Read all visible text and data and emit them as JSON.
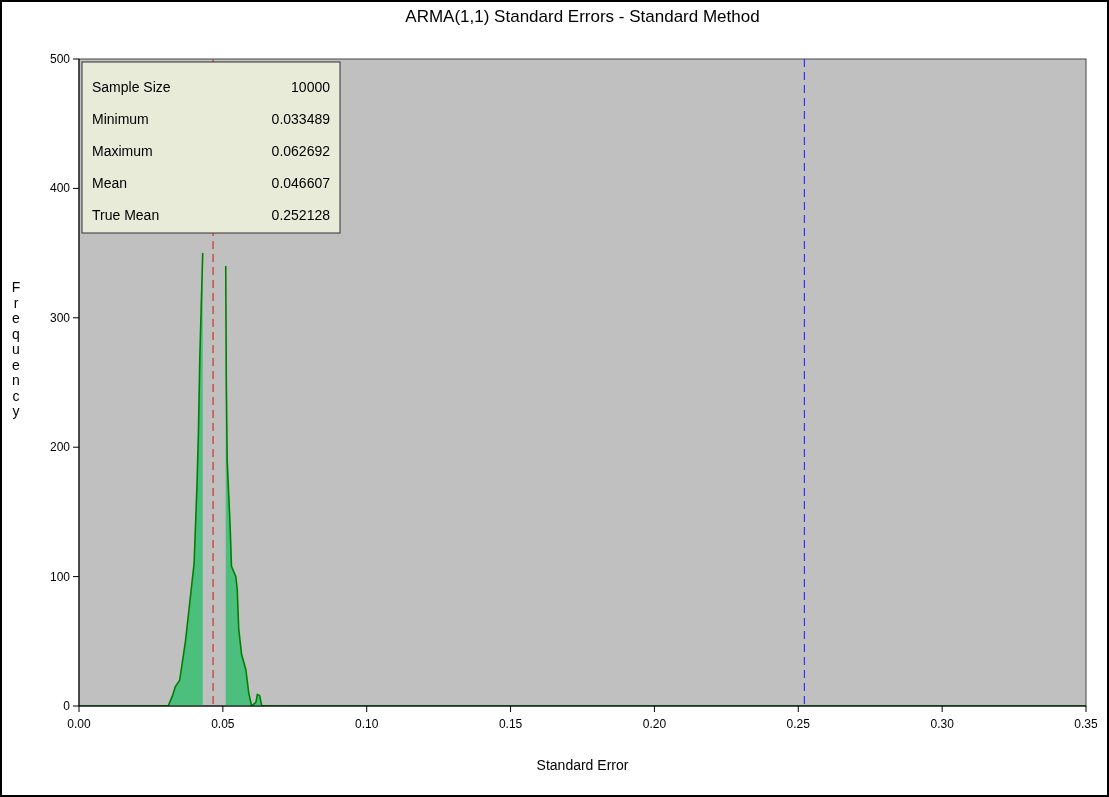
{
  "chart_data": {
    "type": "area",
    "title": "ARMA(1,1) Standard Errors - Standard Method",
    "xlabel": "Standard Error",
    "ylabel": "Frequency",
    "x": [
      0,
      0.031,
      0.0325,
      0.0335,
      0.035,
      0.036,
      0.037,
      0.0385,
      0.04,
      0.041,
      0.0415,
      0.042,
      0.0425,
      0.043,
      0.0435,
      0.0505,
      0.051,
      0.0512,
      0.0515,
      0.0525,
      0.053,
      0.0545,
      0.055,
      0.0555,
      0.0565,
      0.058,
      0.059,
      0.06,
      0.0615,
      0.062,
      0.0628,
      0.0635,
      0.35
    ],
    "series": [
      {
        "color": "#4cbf7f",
        "values": [
          0,
          0,
          8,
          15,
          20,
          35,
          50,
          80,
          110,
          170,
          210,
          270,
          310,
          350,
          null,
          null,
          340,
          250,
          190,
          140,
          108,
          100,
          90,
          60,
          40,
          28,
          10,
          0,
          3,
          9,
          8,
          0,
          0
        ]
      }
    ],
    "xlim": [
      0,
      0.35
    ],
    "xticks": [
      {
        "value": 0,
        "label": "0.00"
      },
      {
        "value": 0.05,
        "label": "0.05"
      },
      {
        "value": 0.1,
        "label": "0.10"
      },
      {
        "value": 0.15,
        "label": "0.15"
      },
      {
        "value": 0.2,
        "label": "0.20"
      },
      {
        "value": 0.25,
        "label": "0.25"
      },
      {
        "value": 0.3,
        "label": "0.30"
      },
      {
        "value": 0.35,
        "label": "0.35"
      }
    ],
    "ylim": [
      0,
      500
    ],
    "yticks": [
      0,
      100,
      200,
      300,
      400,
      500
    ],
    "ref_lines": [
      {
        "axis": "x",
        "value": 0.046607,
        "color": "#cc3333",
        "line_style": "dashed"
      },
      {
        "axis": "x",
        "value": 0.252128,
        "color": "#3333ff",
        "line_style": "dashed"
      }
    ],
    "annotations": [
      "Sample Size",
      "10000",
      "Minimum",
      "0.033489",
      "Maximum",
      "0.062692",
      "Mean",
      "0.046607",
      "True Mean",
      "0.252128"
    ]
  }
}
